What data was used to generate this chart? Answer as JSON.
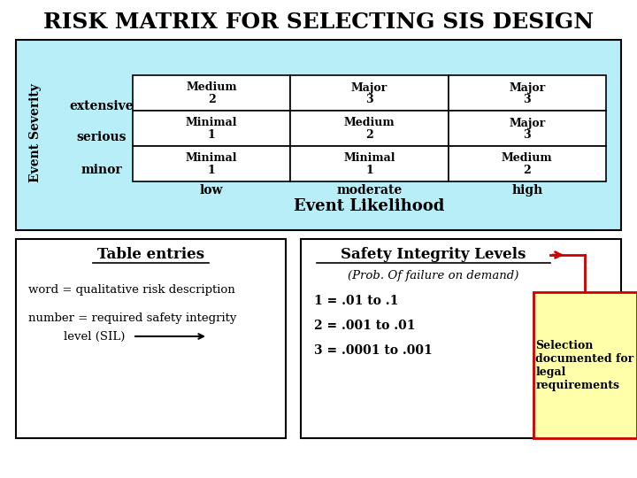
{
  "title": "RISK MATRIX FOR SELECTING SIS DESIGN",
  "title_fontsize": 18,
  "bg_color": "#ffffff",
  "matrix_bg": "#b8eef8",
  "matrix_cell_bg": "#ffffff",
  "rows": [
    "extensive",
    "serious",
    "minor"
  ],
  "cols": [
    "low",
    "moderate",
    "high"
  ],
  "cell_data": [
    [
      [
        "Medium",
        "2"
      ],
      [
        "Major",
        "3"
      ],
      [
        "Major",
        "3"
      ]
    ],
    [
      [
        "Minimal",
        "1"
      ],
      [
        "Medium",
        "2"
      ],
      [
        "Major",
        "3"
      ]
    ],
    [
      [
        "Minimal",
        "1"
      ],
      [
        "Minimal",
        "1"
      ],
      [
        "Medium",
        "2"
      ]
    ]
  ],
  "x_label": "Event Likelihood",
  "y_label": "Event Severity",
  "bottom_left_title": "Table entries",
  "bottom_right_title": "Safety Integrity Levels",
  "bottom_right_subtitle": "(Prob. Of failure on demand)",
  "bottom_right_lines": [
    "1 = .01 to .1",
    "2 = .001 to .01",
    "3 = .0001 to .001"
  ],
  "selection_box_text": "Selection\ndocumented for\nlegal\nrequirements",
  "selection_box_color": "#ffffaa",
  "selection_box_border": "#cc0000",
  "arrow_color": "#cc0000"
}
